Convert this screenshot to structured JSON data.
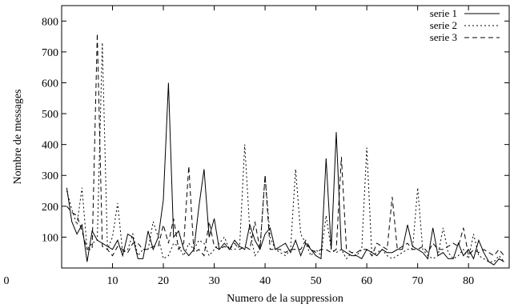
{
  "chart_data": {
    "type": "line",
    "title": "",
    "xlabel": "Numero de la suppression",
    "ylabel": "Nombre de messages",
    "xlim": [
      0,
      88
    ],
    "ylim": [
      0,
      850
    ],
    "x_ticks": [
      10,
      20,
      30,
      40,
      50,
      60,
      70,
      80
    ],
    "x_tick_labels": [
      "10",
      "20",
      "30",
      "40",
      "50",
      "60",
      "70",
      "80"
    ],
    "y_ticks": [
      100,
      200,
      300,
      400,
      500,
      600,
      700,
      800
    ],
    "y_tick_labels": [
      "100",
      "200",
      "300",
      "400",
      "500",
      "600",
      "700",
      "800"
    ],
    "zero_label": "0",
    "grid": false,
    "legend_position": "top-right",
    "x": [
      1,
      2,
      3,
      4,
      5,
      6,
      7,
      8,
      9,
      10,
      11,
      12,
      13,
      14,
      15,
      16,
      17,
      18,
      19,
      20,
      21,
      22,
      23,
      24,
      25,
      26,
      27,
      28,
      29,
      30,
      31,
      32,
      33,
      34,
      35,
      36,
      37,
      38,
      39,
      40,
      41,
      42,
      43,
      44,
      45,
      46,
      47,
      48,
      49,
      50,
      51,
      52,
      53,
      54,
      55,
      56,
      57,
      58,
      59,
      60,
      61,
      62,
      63,
      64,
      65,
      66,
      67,
      68,
      69,
      70,
      71,
      72,
      73,
      74,
      75,
      76,
      77,
      78,
      79,
      80,
      81,
      82,
      83,
      84,
      85,
      86,
      87
    ],
    "series": [
      {
        "name": "serie 1",
        "style": "solid",
        "values": [
          260,
          150,
          110,
          140,
          20,
          120,
          90,
          80,
          70,
          60,
          90,
          40,
          110,
          100,
          30,
          30,
          120,
          60,
          100,
          220,
          600,
          100,
          120,
          60,
          40,
          60,
          200,
          320,
          100,
          160,
          60,
          80,
          60,
          90,
          70,
          60,
          140,
          90,
          60,
          110,
          130,
          60,
          70,
          80,
          50,
          90,
          40,
          80,
          60,
          40,
          30,
          355,
          60,
          440,
          60,
          50,
          40,
          40,
          30,
          60,
          50,
          40,
          60,
          50,
          50,
          60,
          60,
          140,
          70,
          60,
          50,
          30,
          130,
          40,
          50,
          30,
          30,
          80,
          40,
          60,
          30,
          90,
          50,
          20,
          10,
          30,
          20
        ]
      },
      {
        "name": "serie 2",
        "style": "dotted",
        "values": [
          250,
          190,
          140,
          260,
          60,
          80,
          90,
          730,
          60,
          100,
          210,
          50,
          60,
          110,
          40,
          60,
          60,
          150,
          100,
          30,
          40,
          80,
          70,
          40,
          80,
          60,
          90,
          80,
          40,
          60,
          80,
          100,
          60,
          60,
          70,
          400,
          120,
          40,
          60,
          300,
          100,
          60,
          50,
          40,
          60,
          320,
          110,
          80,
          40,
          60,
          40,
          170,
          60,
          50,
          60,
          30,
          50,
          40,
          60,
          390,
          40,
          50,
          60,
          40,
          30,
          40,
          50,
          60,
          60,
          260,
          60,
          40,
          30,
          40,
          130,
          50,
          30,
          40,
          60,
          30,
          110,
          40,
          30,
          20,
          20,
          40,
          20
        ]
      },
      {
        "name": "serie 3",
        "style": "dashed",
        "values": [
          200,
          180,
          170,
          120,
          60,
          60,
          760,
          70,
          60,
          40,
          70,
          60,
          50,
          80,
          80,
          60,
          60,
          70,
          70,
          140,
          80,
          160,
          60,
          80,
          330,
          50,
          60,
          40,
          150,
          70,
          60,
          70,
          60,
          80,
          60,
          70,
          60,
          150,
          60,
          300,
          60,
          60,
          60,
          50,
          60,
          60,
          60,
          90,
          60,
          50,
          60,
          60,
          50,
          60,
          360,
          60,
          50,
          50,
          60,
          60,
          40,
          80,
          70,
          60,
          230,
          60,
          70,
          80,
          60,
          60,
          70,
          50,
          80,
          60,
          60,
          70,
          80,
          70,
          130,
          40,
          60,
          50,
          60,
          50,
          40,
          60,
          40
        ]
      }
    ]
  }
}
